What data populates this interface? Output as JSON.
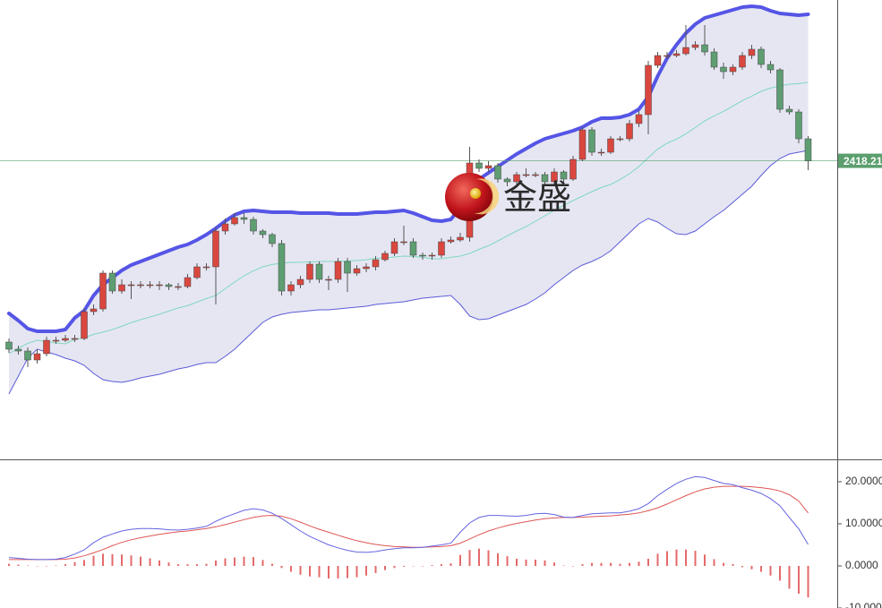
{
  "chart_data": [
    {
      "type": "candlestick",
      "ylim": [
        2252,
        2508
      ],
      "open": [
        2317,
        2313,
        2312,
        2307,
        2310.5,
        2318,
        2318,
        2319,
        2319,
        2334,
        2335.5,
        2355.5,
        2345.5,
        2349,
        2349,
        2349,
        2349,
        2349,
        2348,
        2348,
        2353,
        2359,
        2359,
        2379,
        2383,
        2386.5,
        2385.5,
        2379,
        2377,
        2372,
        2345.5,
        2349,
        2352,
        2360.5,
        2352,
        2352,
        2362,
        2355.5,
        2358,
        2359,
        2363,
        2366.5,
        2373,
        2373,
        2365.5,
        2365,
        2365.5,
        2373,
        2374,
        2375.5,
        2417,
        2414,
        2415.5,
        2408,
        2406.5,
        2410.5,
        2410.5,
        2410.5,
        2406.5,
        2412,
        2408,
        2419,
        2435.5,
        2423,
        2423,
        2430.5,
        2430.5,
        2439,
        2444,
        2471.5,
        2477,
        2477,
        2478,
        2481.5,
        2483,
        2479,
        2470.5,
        2468,
        2470.5,
        2477,
        2480.5,
        2472,
        2469,
        2447,
        2445.5,
        2430.5
      ],
      "high": [
        2319,
        2315,
        2314,
        2313,
        2320,
        2320,
        2321,
        2321,
        2336,
        2338,
        2357,
        2357,
        2352,
        2351,
        2351,
        2351,
        2351,
        2350,
        2350,
        2355,
        2361,
        2361,
        2381,
        2386,
        2389,
        2389,
        2387,
        2380,
        2378,
        2374,
        2351,
        2354,
        2362,
        2362,
        2354,
        2364,
        2364,
        2360,
        2361,
        2365,
        2368,
        2375,
        2382,
        2375,
        2367,
        2367,
        2375,
        2376,
        2378,
        2426,
        2419,
        2418,
        2417,
        2409,
        2412,
        2414,
        2412,
        2412,
        2414,
        2413,
        2421,
        2437,
        2437,
        2425,
        2432,
        2432,
        2441,
        2446,
        2474,
        2479,
        2479,
        2480,
        2494,
        2485,
        2494,
        2481,
        2473,
        2472,
        2479,
        2483,
        2482,
        2474,
        2470,
        2449,
        2447,
        2432
      ],
      "low": [
        2311,
        2310,
        2303,
        2305,
        2309,
        2316,
        2317,
        2317,
        2318,
        2332,
        2334,
        2344,
        2344,
        2341,
        2347,
        2347,
        2346,
        2346,
        2346,
        2347,
        2352,
        2357,
        2338,
        2377,
        2382,
        2383,
        2377,
        2375,
        2370,
        2343,
        2343,
        2347,
        2350,
        2350,
        2346,
        2350,
        2345,
        2354,
        2356,
        2357,
        2362,
        2365,
        2371,
        2364,
        2363,
        2363,
        2364,
        2372,
        2373,
        2373,
        2412,
        2412,
        2406,
        2404,
        2405,
        2409,
        2409,
        2405,
        2405,
        2406,
        2407,
        2418,
        2421,
        2421,
        2422,
        2429,
        2429,
        2437,
        2433,
        2470,
        2475,
        2476,
        2477,
        2480,
        2477,
        2469,
        2464,
        2466,
        2469,
        2475,
        2470,
        2467,
        2445,
        2444,
        2428,
        2413
      ],
      "close": [
        2313,
        2312,
        2307,
        2310.5,
        2318,
        2318,
        2319,
        2319,
        2334,
        2335.5,
        2355.5,
        2345.5,
        2349,
        2349,
        2349,
        2349,
        2349,
        2348,
        2348,
        2353,
        2359,
        2359,
        2379,
        2383,
        2386.5,
        2385.5,
        2379,
        2377,
        2372,
        2345.5,
        2349,
        2352,
        2360.5,
        2352,
        2352,
        2362,
        2355.5,
        2358,
        2359,
        2363,
        2366.5,
        2373,
        2373,
        2365.5,
        2365,
        2365.5,
        2373,
        2374,
        2375.5,
        2417,
        2414,
        2415.5,
        2408,
        2406.5,
        2410.5,
        2410.5,
        2410.5,
        2406.5,
        2412,
        2408,
        2419,
        2435.5,
        2423,
        2423,
        2430.5,
        2430.5,
        2439,
        2444,
        2471.5,
        2477,
        2477,
        2478,
        2481.5,
        2483,
        2479,
        2470.5,
        2468,
        2470.5,
        2477,
        2480.5,
        2472,
        2469,
        2447,
        2445.5,
        2430.5,
        2418.21
      ],
      "upper": [
        2333,
        2329,
        2324.5,
        2323,
        2323,
        2323,
        2324,
        2330.5,
        2334.5,
        2343,
        2349,
        2353,
        2357,
        2360,
        2362,
        2364,
        2366,
        2368,
        2370,
        2371.5,
        2374,
        2377,
        2380.5,
        2384.5,
        2388,
        2390,
        2390.5,
        2390,
        2389.5,
        2389.5,
        2389.5,
        2389,
        2389,
        2389,
        2389,
        2388.5,
        2388.5,
        2388.5,
        2389,
        2389.5,
        2389.5,
        2390,
        2390.5,
        2389,
        2387,
        2385,
        2384.5,
        2385.5,
        2392,
        2401.5,
        2408,
        2411.5,
        2415,
        2418.5,
        2422,
        2425,
        2428,
        2430.5,
        2432,
        2433.5,
        2435,
        2437,
        2440,
        2442,
        2442,
        2442.5,
        2444,
        2447,
        2454,
        2465.5,
        2475.5,
        2483,
        2489.5,
        2494.5,
        2498,
        2499.5,
        2501,
        2502.5,
        2504,
        2504.5,
        2504,
        2502,
        2500.5,
        2500,
        2499.5,
        2500
      ],
      "middle": [
        2310.5,
        2313.5,
        2316.3,
        2318,
        2317.3,
        2316.5,
        2316,
        2318.5,
        2319.3,
        2321.3,
        2322.5,
        2324,
        2325.8,
        2327.8,
        2329.5,
        2331,
        2332.5,
        2334.3,
        2336,
        2337.3,
        2339.3,
        2341.3,
        2343,
        2346.8,
        2350.5,
        2354,
        2356.8,
        2359,
        2360.3,
        2361,
        2361.5,
        2361.5,
        2361.8,
        2362,
        2362,
        2362,
        2362.3,
        2362.5,
        2363,
        2363.8,
        2364,
        2364.5,
        2365,
        2364.8,
        2364.3,
        2363.5,
        2363.5,
        2364.3,
        2365,
        2366.5,
        2368.8,
        2370.8,
        2373.5,
        2376.3,
        2379,
        2381.5,
        2384.5,
        2387.5,
        2390.5,
        2393.3,
        2396,
        2398.5,
        2401,
        2403.3,
        2405,
        2407.8,
        2411,
        2415,
        2420,
        2424.8,
        2428,
        2430.3,
        2433.3,
        2436.8,
        2440.5,
        2443.3,
        2445.8,
        2448.8,
        2451.8,
        2454.3,
        2457,
        2458.8,
        2460,
        2461,
        2461.3,
        2462
      ],
      "lower": [
        2288,
        2298,
        2308,
        2313,
        2311.5,
        2310,
        2308,
        2306.5,
        2304,
        2299.5,
        2296,
        2295,
        2294.5,
        2295.5,
        2297,
        2298,
        2299,
        2300.5,
        2302,
        2303,
        2304.5,
        2305.5,
        2305.5,
        2309,
        2313,
        2318,
        2323,
        2328,
        2331,
        2332.5,
        2333.5,
        2334,
        2334.5,
        2335,
        2335,
        2335.5,
        2336,
        2336.5,
        2337,
        2338,
        2338.5,
        2339,
        2339.5,
        2340.5,
        2341.5,
        2342,
        2342.5,
        2343,
        2338,
        2331.5,
        2329.5,
        2330,
        2332,
        2334,
        2336,
        2338,
        2341,
        2344.5,
        2349,
        2353,
        2357,
        2360,
        2362,
        2364.5,
        2368,
        2373,
        2378,
        2383,
        2386,
        2384,
        2380.5,
        2377.5,
        2377,
        2379,
        2383,
        2387,
        2390.5,
        2395,
        2399.5,
        2404,
        2410,
        2415.5,
        2419.5,
        2422,
        2423,
        2424
      ],
      "up_color": "#d9473f",
      "down_color": "#5e9e72",
      "upper_color": "#5555e6",
      "middle_color": "#7fd8bc",
      "lower_color": "#5c5cd8",
      "band_fill": "#e6e6f3",
      "last_price": 2418.21,
      "last_price_color": "#5b9f6e",
      "watermark": "金盛"
    },
    {
      "type": "macd",
      "ylim": [
        -10,
        25.1
      ],
      "yticks": [
        {
          "value": 20,
          "label": "20.0000"
        },
        {
          "value": 10,
          "label": "10.0000"
        },
        {
          "value": 0,
          "label": "0.0000"
        },
        {
          "value": -10,
          "label": "-10.0000"
        }
      ],
      "dif": [
        2.0,
        1.8,
        1.6,
        1.5,
        1.5,
        1.6,
        2.0,
        2.8,
        3.8,
        5.5,
        6.8,
        7.6,
        8.3,
        8.7,
        8.9,
        8.9,
        8.8,
        8.6,
        8.5,
        8.7,
        9.0,
        9.4,
        10.6,
        11.6,
        12.4,
        13.2,
        13.6,
        13.3,
        12.5,
        11.3,
        9.8,
        8.3,
        7.0,
        6.0,
        5.0,
        4.3,
        3.7,
        3.3,
        3.2,
        3.4,
        3.8,
        4.1,
        4.3,
        4.3,
        4.4,
        4.7,
        5.0,
        5.4,
        8.0,
        10.2,
        11.5,
        12.0,
        12.0,
        11.9,
        11.8,
        12.0,
        12.4,
        12.5,
        12.2,
        11.6,
        11.5,
        12.0,
        12.4,
        12.5,
        12.6,
        12.6,
        13.0,
        13.6,
        14.8,
        16.7,
        18.2,
        19.6,
        20.6,
        21.2,
        21.0,
        20.3,
        19.6,
        19.3,
        18.6,
        18.0,
        17.2,
        16.0,
        14.3,
        11.5,
        8.8,
        5.1
      ],
      "dea": [
        1.5,
        1.5,
        1.5,
        1.5,
        1.5,
        1.5,
        1.6,
        1.9,
        2.4,
        3.1,
        3.9,
        4.8,
        5.6,
        6.2,
        6.7,
        7.1,
        7.5,
        7.8,
        8.1,
        8.3,
        8.6,
        8.9,
        9.3,
        9.8,
        10.4,
        11.0,
        11.5,
        11.9,
        12.0,
        11.8,
        11.2,
        10.4,
        9.5,
        8.7,
        8.0,
        7.3,
        6.6,
        6.0,
        5.5,
        5.1,
        4.8,
        4.6,
        4.5,
        4.4,
        4.4,
        4.5,
        4.6,
        4.8,
        5.4,
        6.4,
        7.4,
        8.3,
        9.0,
        9.6,
        10.1,
        10.5,
        10.9,
        11.2,
        11.4,
        11.5,
        11.5,
        11.6,
        11.7,
        11.8,
        11.9,
        12.1,
        12.3,
        12.6,
        13.1,
        13.8,
        14.7,
        15.7,
        16.7,
        17.6,
        18.3,
        18.7,
        18.9,
        18.9,
        18.9,
        18.8,
        18.6,
        18.3,
        17.8,
        16.9,
        15.4,
        12.6
      ],
      "histogram": [
        0.5,
        0.3,
        0.1,
        0,
        0,
        0.1,
        0.4,
        0.9,
        1.4,
        2.4,
        2.9,
        2.8,
        2.7,
        2.5,
        2.2,
        1.8,
        1.3,
        0.8,
        0.4,
        0.4,
        0.4,
        0.5,
        1.3,
        1.8,
        2.0,
        2.2,
        2.1,
        1.4,
        0.5,
        -0.5,
        -1.4,
        -2.1,
        -2.5,
        -2.7,
        -3.0,
        -3.0,
        -2.9,
        -2.7,
        -2.3,
        -1.7,
        -1.0,
        -0.5,
        -0.2,
        -0.1,
        0,
        0.2,
        0.4,
        0.6,
        2.6,
        3.8,
        4.1,
        3.7,
        3.0,
        2.3,
        1.7,
        1.5,
        1.5,
        1.3,
        0.8,
        0.1,
        0,
        0.4,
        0.7,
        0.7,
        0.7,
        0.5,
        0.7,
        1.0,
        1.7,
        2.9,
        3.5,
        3.9,
        3.9,
        3.6,
        2.7,
        1.6,
        0.7,
        0.4,
        -0.3,
        -0.8,
        -1.4,
        -2.3,
        -3.5,
        -5.4,
        -6.6,
        -7.5
      ],
      "dif_color": "#6464e0",
      "dea_color": "#e05555",
      "histogram_color": "#e46a6a"
    }
  ]
}
